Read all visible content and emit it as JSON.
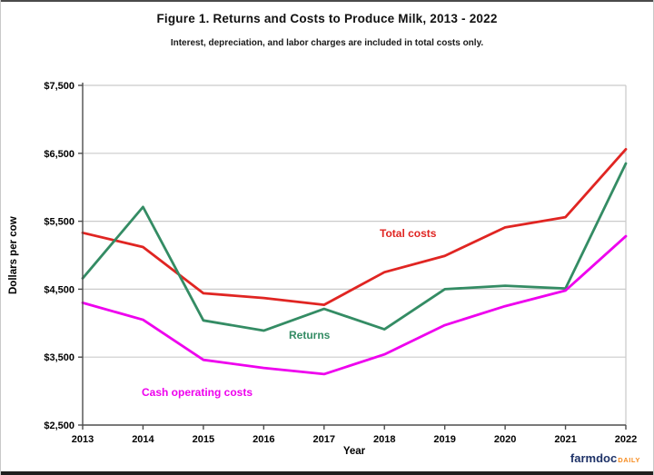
{
  "footer": {
    "brand": "farmdoc",
    "brand_suffix": "DAILY"
  },
  "colors": {
    "total_costs": "#E02522",
    "returns": "#348C64",
    "cash_operating_costs": "#EE00EE",
    "grid": "#CBCBCB",
    "plot_border": "#C9C9C9",
    "axis": "#4D4D4D",
    "tick_text": "#000000",
    "title_text": "#111111",
    "brand_navy": "#1F3368",
    "brand_orange": "#F68B1F"
  },
  "chart_data": {
    "type": "line",
    "title": "Figure 1. Returns and Costs to Produce Milk, 2013 - 2022",
    "subtitle": "Interest, depreciation, and labor charges are included in total costs only.",
    "xlabel": "Year",
    "ylabel": "Dollars per cow",
    "x": [
      2013,
      2014,
      2015,
      2016,
      2017,
      2018,
      2019,
      2020,
      2021,
      2022
    ],
    "categories": [
      "2013",
      "2014",
      "2015",
      "2016",
      "2017",
      "2018",
      "2019",
      "2020",
      "2021",
      "2022"
    ],
    "ylim": [
      2500,
      7500
    ],
    "ytick_values": [
      2500,
      3500,
      4500,
      5500,
      6500,
      7500
    ],
    "ytick_labels": [
      "$2,500",
      "$3,500",
      "$4,500",
      "$5,500",
      "$6,500",
      "$7,500"
    ],
    "grid": true,
    "legend_position": "inline-labels",
    "series": [
      {
        "name": "Total costs",
        "color_key": "total_costs",
        "values": [
          5330,
          5120,
          4440,
          4370,
          4270,
          4750,
          4990,
          5410,
          5560,
          6560
        ]
      },
      {
        "name": "Returns",
        "color_key": "returns",
        "values": [
          4660,
          5710,
          4040,
          3890,
          4210,
          3910,
          4500,
          4550,
          4510,
          6350
        ]
      },
      {
        "name": "Cash operating costs",
        "color_key": "cash_operating_costs",
        "values": [
          4300,
          4050,
          3460,
          3340,
          3250,
          3540,
          3970,
          4250,
          4480,
          5280
        ]
      }
    ]
  }
}
